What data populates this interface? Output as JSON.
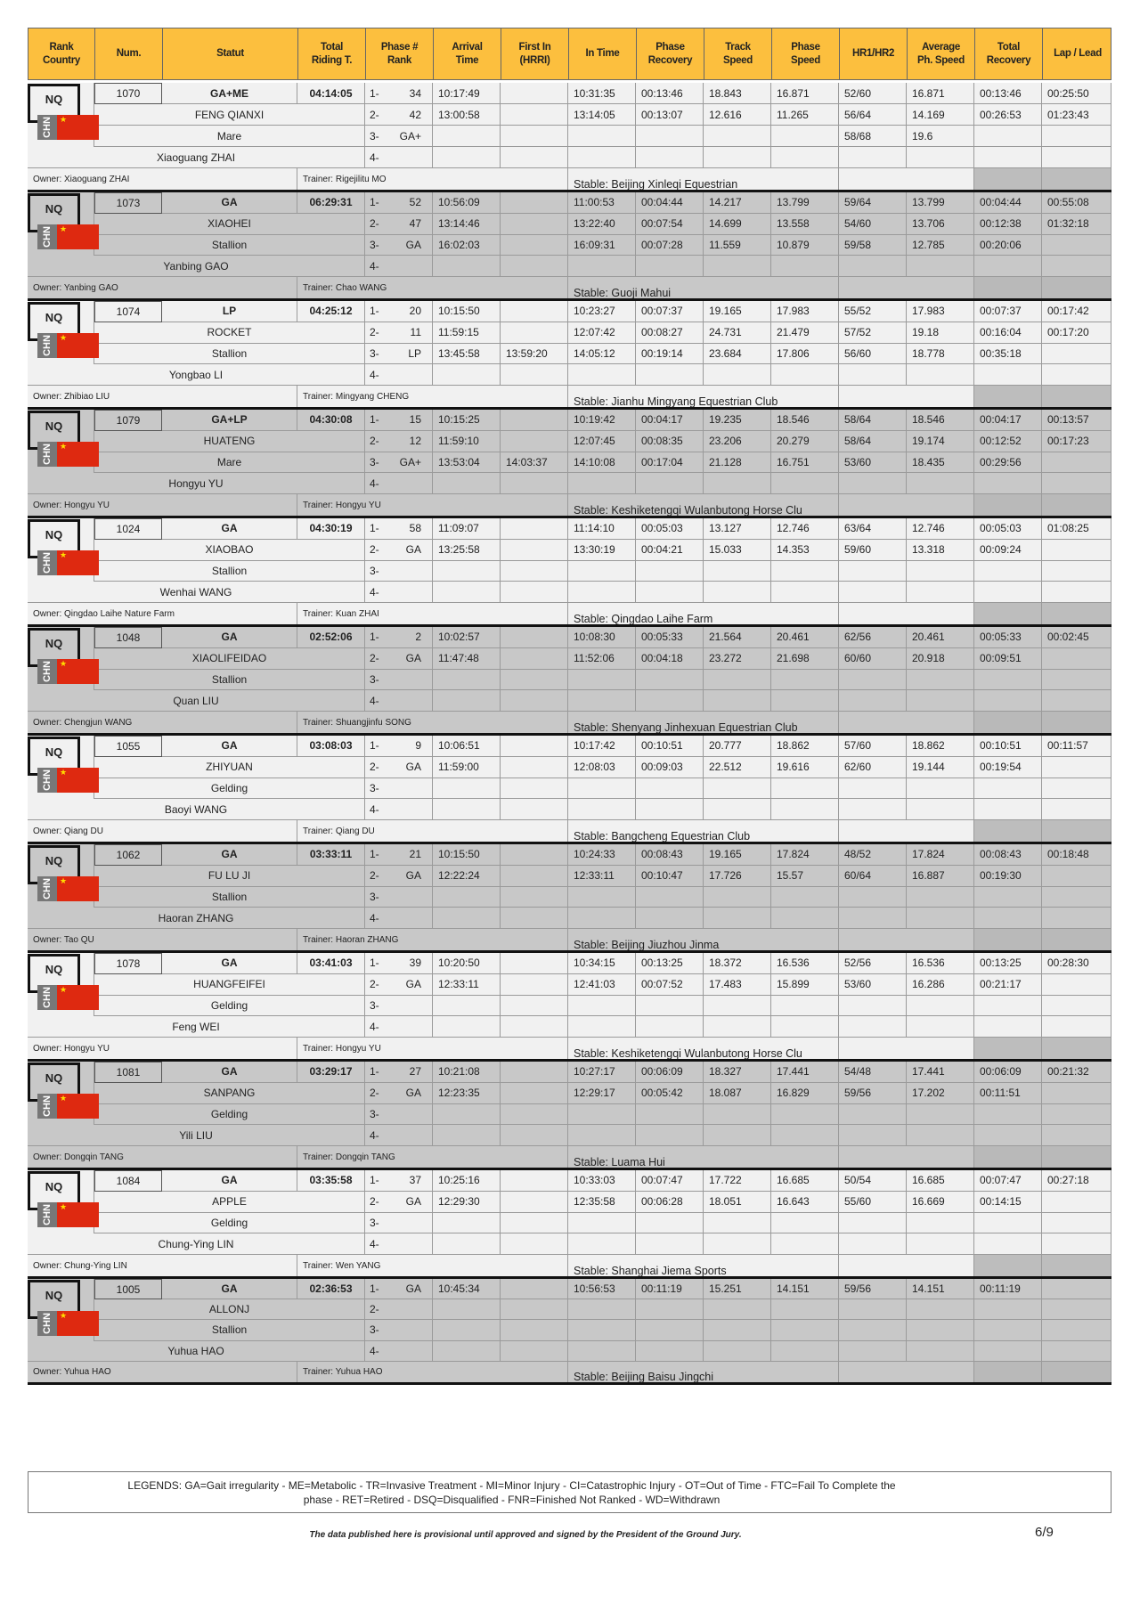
{
  "header": [
    "Rank\nCountry",
    "Num.",
    "Statut",
    "Total\nRiding T.",
    "Phase #\nRank",
    "Arrival\nTime",
    "First In\n(HRRI)",
    "In Time",
    "Phase\nRecovery",
    "Track\nSpeed",
    "Phase\nSpeed",
    "HR1/HR2",
    "Average\nPh. Speed",
    "Total\nRecovery",
    "Lap / Lead"
  ],
  "phase_labels": [
    "1-",
    "2-",
    "3-",
    "4-"
  ],
  "colors": {
    "header_bg": "#fcbf3e",
    "row_light": "#f1f1f1",
    "row_dark": "#c8c8c8",
    "flag_red": "#de2910"
  },
  "blocks": [
    {
      "rank": "NQ",
      "country": "CHN",
      "num": "1070",
      "statut": "GA+ME",
      "total_riding": "04:14:05",
      "horse": "FENG QIANXI",
      "gender": "Mare",
      "rider": "Xiaoguang ZHAI",
      "owner": "Owner: Xiaoguang ZHAI",
      "trainer": "Trainer: Rigejilitu MO",
      "stable": "Stable: Beijing Xinleqi Equestrian",
      "phases": [
        [
          "34",
          "10:17:49",
          "",
          "10:31:35",
          "00:13:46",
          "18.843",
          "16.871",
          "52/60",
          "16.871",
          "00:13:46",
          "00:25:50"
        ],
        [
          "42",
          "13:00:58",
          "",
          "13:14:05",
          "00:13:07",
          "12.616",
          "11.265",
          "56/64",
          "14.169",
          "00:26:53",
          "01:23:43"
        ],
        [
          "GA+",
          "",
          "",
          "",
          "",
          "",
          "",
          "58/68",
          "19.6",
          "",
          ""
        ],
        [
          "",
          "",
          "",
          "",
          "",
          "",
          "",
          "",
          "",
          "",
          ""
        ]
      ]
    },
    {
      "rank": "NQ",
      "country": "CHN",
      "num": "1073",
      "statut": "GA",
      "total_riding": "06:29:31",
      "horse": "XIAOHEI",
      "gender": "Stallion",
      "rider": "Yanbing GAO",
      "owner": "Owner: Yanbing GAO",
      "trainer": "Trainer: Chao WANG",
      "stable": "Stable: Guoji Mahui",
      "phases": [
        [
          "52",
          "10:56:09",
          "",
          "11:00:53",
          "00:04:44",
          "14.217",
          "13.799",
          "59/64",
          "13.799",
          "00:04:44",
          "00:55:08"
        ],
        [
          "47",
          "13:14:46",
          "",
          "13:22:40",
          "00:07:54",
          "14.699",
          "13.558",
          "54/60",
          "13.706",
          "00:12:38",
          "01:32:18"
        ],
        [
          "GA",
          "16:02:03",
          "",
          "16:09:31",
          "00:07:28",
          "11.559",
          "10.879",
          "59/58",
          "12.785",
          "00:20:06",
          ""
        ],
        [
          "",
          "",
          "",
          "",
          "",
          "",
          "",
          "",
          "",
          "",
          ""
        ]
      ]
    },
    {
      "rank": "NQ",
      "country": "CHN",
      "num": "1074",
      "statut": "LP",
      "total_riding": "04:25:12",
      "horse": "ROCKET",
      "gender": "Stallion",
      "rider": "Yongbao LI",
      "owner": "Owner: Zhibiao LIU",
      "trainer": "Trainer: Mingyang CHENG",
      "stable": "Stable: Jianhu Mingyang Equestrian Club",
      "phases": [
        [
          "20",
          "10:15:50",
          "",
          "10:23:27",
          "00:07:37",
          "19.165",
          "17.983",
          "55/52",
          "17.983",
          "00:07:37",
          "00:17:42"
        ],
        [
          "11",
          "11:59:15",
          "",
          "12:07:42",
          "00:08:27",
          "24.731",
          "21.479",
          "57/52",
          "19.18",
          "00:16:04",
          "00:17:20"
        ],
        [
          "LP",
          "13:45:58",
          "13:59:20",
          "14:05:12",
          "00:19:14",
          "23.684",
          "17.806",
          "56/60",
          "18.778",
          "00:35:18",
          ""
        ],
        [
          "",
          "",
          "",
          "",
          "",
          "",
          "",
          "",
          "",
          "",
          ""
        ]
      ]
    },
    {
      "rank": "NQ",
      "country": "CHN",
      "num": "1079",
      "statut": "GA+LP",
      "total_riding": "04:30:08",
      "horse": "HUATENG",
      "gender": "Mare",
      "rider": "Hongyu YU",
      "owner": "Owner: Hongyu YU",
      "trainer": "Trainer: Hongyu YU",
      "stable": "Stable: Keshiketengqi Wulanbutong Horse Clu",
      "phases": [
        [
          "15",
          "10:15:25",
          "",
          "10:19:42",
          "00:04:17",
          "19.235",
          "18.546",
          "58/64",
          "18.546",
          "00:04:17",
          "00:13:57"
        ],
        [
          "12",
          "11:59:10",
          "",
          "12:07:45",
          "00:08:35",
          "23.206",
          "20.279",
          "58/64",
          "19.174",
          "00:12:52",
          "00:17:23"
        ],
        [
          "GA+",
          "13:53:04",
          "14:03:37",
          "14:10:08",
          "00:17:04",
          "21.128",
          "16.751",
          "53/60",
          "18.435",
          "00:29:56",
          ""
        ],
        [
          "",
          "",
          "",
          "",
          "",
          "",
          "",
          "",
          "",
          "",
          ""
        ]
      ]
    },
    {
      "rank": "NQ",
      "country": "CHN",
      "num": "1024",
      "statut": "GA",
      "total_riding": "04:30:19",
      "horse": "XIAOBAO",
      "gender": "Stallion",
      "rider": "Wenhai WANG",
      "owner": "Owner: Qingdao Laihe Nature Farm",
      "trainer": "Trainer: Kuan ZHAI",
      "stable": "Stable: Qingdao Laihe Farm",
      "phases": [
        [
          "58",
          "11:09:07",
          "",
          "11:14:10",
          "00:05:03",
          "13.127",
          "12.746",
          "63/64",
          "12.746",
          "00:05:03",
          "01:08:25"
        ],
        [
          "GA",
          "13:25:58",
          "",
          "13:30:19",
          "00:04:21",
          "15.033",
          "14.353",
          "59/60",
          "13.318",
          "00:09:24",
          ""
        ],
        [
          "",
          "",
          "",
          "",
          "",
          "",
          "",
          "",
          "",
          "",
          ""
        ],
        [
          "",
          "",
          "",
          "",
          "",
          "",
          "",
          "",
          "",
          "",
          ""
        ]
      ]
    },
    {
      "rank": "NQ",
      "country": "CHN",
      "num": "1048",
      "statut": "GA",
      "total_riding": "02:52:06",
      "horse": "XIAOLIFEIDAO",
      "gender": "Stallion",
      "rider": "Quan LIU",
      "owner": "Owner: Chengjun WANG",
      "trainer": "Trainer: Shuangjinfu SONG",
      "stable": "Stable: Shenyang Jinhexuan Equestrian Club",
      "phases": [
        [
          "2",
          "10:02:57",
          "",
          "10:08:30",
          "00:05:33",
          "21.564",
          "20.461",
          "62/56",
          "20.461",
          "00:05:33",
          "00:02:45"
        ],
        [
          "GA",
          "11:47:48",
          "",
          "11:52:06",
          "00:04:18",
          "23.272",
          "21.698",
          "60/60",
          "20.918",
          "00:09:51",
          ""
        ],
        [
          "",
          "",
          "",
          "",
          "",
          "",
          "",
          "",
          "",
          "",
          ""
        ],
        [
          "",
          "",
          "",
          "",
          "",
          "",
          "",
          "",
          "",
          "",
          ""
        ]
      ]
    },
    {
      "rank": "NQ",
      "country": "CHN",
      "num": "1055",
      "statut": "GA",
      "total_riding": "03:08:03",
      "horse": "ZHIYUAN",
      "gender": "Gelding",
      "rider": "Baoyi WANG",
      "owner": "Owner: Qiang DU",
      "trainer": "Trainer: Qiang DU",
      "stable": "Stable: Bangcheng Equestrian Club",
      "phases": [
        [
          "9",
          "10:06:51",
          "",
          "10:17:42",
          "00:10:51",
          "20.777",
          "18.862",
          "57/60",
          "18.862",
          "00:10:51",
          "00:11:57"
        ],
        [
          "GA",
          "11:59:00",
          "",
          "12:08:03",
          "00:09:03",
          "22.512",
          "19.616",
          "62/60",
          "19.144",
          "00:19:54",
          ""
        ],
        [
          "",
          "",
          "",
          "",
          "",
          "",
          "",
          "",
          "",
          "",
          ""
        ],
        [
          "",
          "",
          "",
          "",
          "",
          "",
          "",
          "",
          "",
          "",
          ""
        ]
      ]
    },
    {
      "rank": "NQ",
      "country": "CHN",
      "num": "1062",
      "statut": "GA",
      "total_riding": "03:33:11",
      "horse": "FU LU JI",
      "gender": "Stallion",
      "rider": "Haoran ZHANG",
      "owner": "Owner: Tao QU",
      "trainer": "Trainer: Haoran ZHANG",
      "stable": "Stable: Beijing Jiuzhou Jinma",
      "phases": [
        [
          "21",
          "10:15:50",
          "",
          "10:24:33",
          "00:08:43",
          "19.165",
          "17.824",
          "48/52",
          "17.824",
          "00:08:43",
          "00:18:48"
        ],
        [
          "GA",
          "12:22:24",
          "",
          "12:33:11",
          "00:10:47",
          "17.726",
          "15.57",
          "60/64",
          "16.887",
          "00:19:30",
          ""
        ],
        [
          "",
          "",
          "",
          "",
          "",
          "",
          "",
          "",
          "",
          "",
          ""
        ],
        [
          "",
          "",
          "",
          "",
          "",
          "",
          "",
          "",
          "",
          "",
          ""
        ]
      ]
    },
    {
      "rank": "NQ",
      "country": "CHN",
      "num": "1078",
      "statut": "GA",
      "total_riding": "03:41:03",
      "horse": "HUANGFEIFEI",
      "gender": "Gelding",
      "rider": "Feng WEI",
      "owner": "Owner: Hongyu YU",
      "trainer": "Trainer: Hongyu YU",
      "stable": "Stable: Keshiketengqi Wulanbutong Horse Clu",
      "phases": [
        [
          "39",
          "10:20:50",
          "",
          "10:34:15",
          "00:13:25",
          "18.372",
          "16.536",
          "52/56",
          "16.536",
          "00:13:25",
          "00:28:30"
        ],
        [
          "GA",
          "12:33:11",
          "",
          "12:41:03",
          "00:07:52",
          "17.483",
          "15.899",
          "53/60",
          "16.286",
          "00:21:17",
          ""
        ],
        [
          "",
          "",
          "",
          "",
          "",
          "",
          "",
          "",
          "",
          "",
          ""
        ],
        [
          "",
          "",
          "",
          "",
          "",
          "",
          "",
          "",
          "",
          "",
          ""
        ]
      ]
    },
    {
      "rank": "NQ",
      "country": "CHN",
      "num": "1081",
      "statut": "GA",
      "total_riding": "03:29:17",
      "horse": "SANPANG",
      "gender": "Gelding",
      "rider": "Yili LIU",
      "owner": "Owner: Dongqin TANG",
      "trainer": "Trainer: Dongqin TANG",
      "stable": "Stable: Luama Hui",
      "phases": [
        [
          "27",
          "10:21:08",
          "",
          "10:27:17",
          "00:06:09",
          "18.327",
          "17.441",
          "54/48",
          "17.441",
          "00:06:09",
          "00:21:32"
        ],
        [
          "GA",
          "12:23:35",
          "",
          "12:29:17",
          "00:05:42",
          "18.087",
          "16.829",
          "59/56",
          "17.202",
          "00:11:51",
          ""
        ],
        [
          "",
          "",
          "",
          "",
          "",
          "",
          "",
          "",
          "",
          "",
          ""
        ],
        [
          "",
          "",
          "",
          "",
          "",
          "",
          "",
          "",
          "",
          "",
          ""
        ]
      ]
    },
    {
      "rank": "NQ",
      "country": "CHN",
      "num": "1084",
      "statut": "GA",
      "total_riding": "03:35:58",
      "horse": "APPLE",
      "gender": "Gelding",
      "rider": "Chung-Ying LIN",
      "owner": "Owner: Chung-Ying LIN",
      "trainer": "Trainer: Wen YANG",
      "stable": "Stable: Shanghai Jiema Sports",
      "phases": [
        [
          "37",
          "10:25:16",
          "",
          "10:33:03",
          "00:07:47",
          "17.722",
          "16.685",
          "50/54",
          "16.685",
          "00:07:47",
          "00:27:18"
        ],
        [
          "GA",
          "12:29:30",
          "",
          "12:35:58",
          "00:06:28",
          "18.051",
          "16.643",
          "55/60",
          "16.669",
          "00:14:15",
          ""
        ],
        [
          "",
          "",
          "",
          "",
          "",
          "",
          "",
          "",
          "",
          "",
          ""
        ],
        [
          "",
          "",
          "",
          "",
          "",
          "",
          "",
          "",
          "",
          "",
          ""
        ]
      ]
    },
    {
      "rank": "NQ",
      "country": "CHN",
      "num": "1005",
      "statut": "GA",
      "total_riding": "02:36:53",
      "horse": "ALLONJ",
      "gender": "Stallion",
      "rider": "Yuhua HAO",
      "owner": "Owner: Yuhua HAO",
      "trainer": "Trainer: Yuhua HAO",
      "stable": "Stable: Beijing Baisu Jingchi",
      "phases": [
        [
          "GA",
          "10:45:34",
          "",
          "10:56:53",
          "00:11:19",
          "15.251",
          "14.151",
          "59/56",
          "14.151",
          "00:11:19",
          ""
        ],
        [
          "",
          "",
          "",
          "",
          "",
          "",
          "",
          "",
          "",
          "",
          ""
        ],
        [
          "",
          "",
          "",
          "",
          "",
          "",
          "",
          "",
          "",
          "",
          ""
        ],
        [
          "",
          "",
          "",
          "",
          "",
          "",
          "",
          "",
          "",
          "",
          ""
        ]
      ]
    }
  ],
  "legend": {
    "line1": "LEGENDS: GA=Gait irregularity - ME=Metabolic - TR=Invasive Treatment - MI=Minor Injury - CI=Catastrophic Injury - OT=Out of Time - FTC=Fail To Complete the",
    "line2": "phase - RET=Retired - DSQ=Disqualified - FNR=Finished Not Ranked - WD=Withdrawn"
  },
  "footer": {
    "disclaimer": "The data published here is provisional until approved and signed by the President of the Ground Jury.",
    "page": "6/9"
  }
}
